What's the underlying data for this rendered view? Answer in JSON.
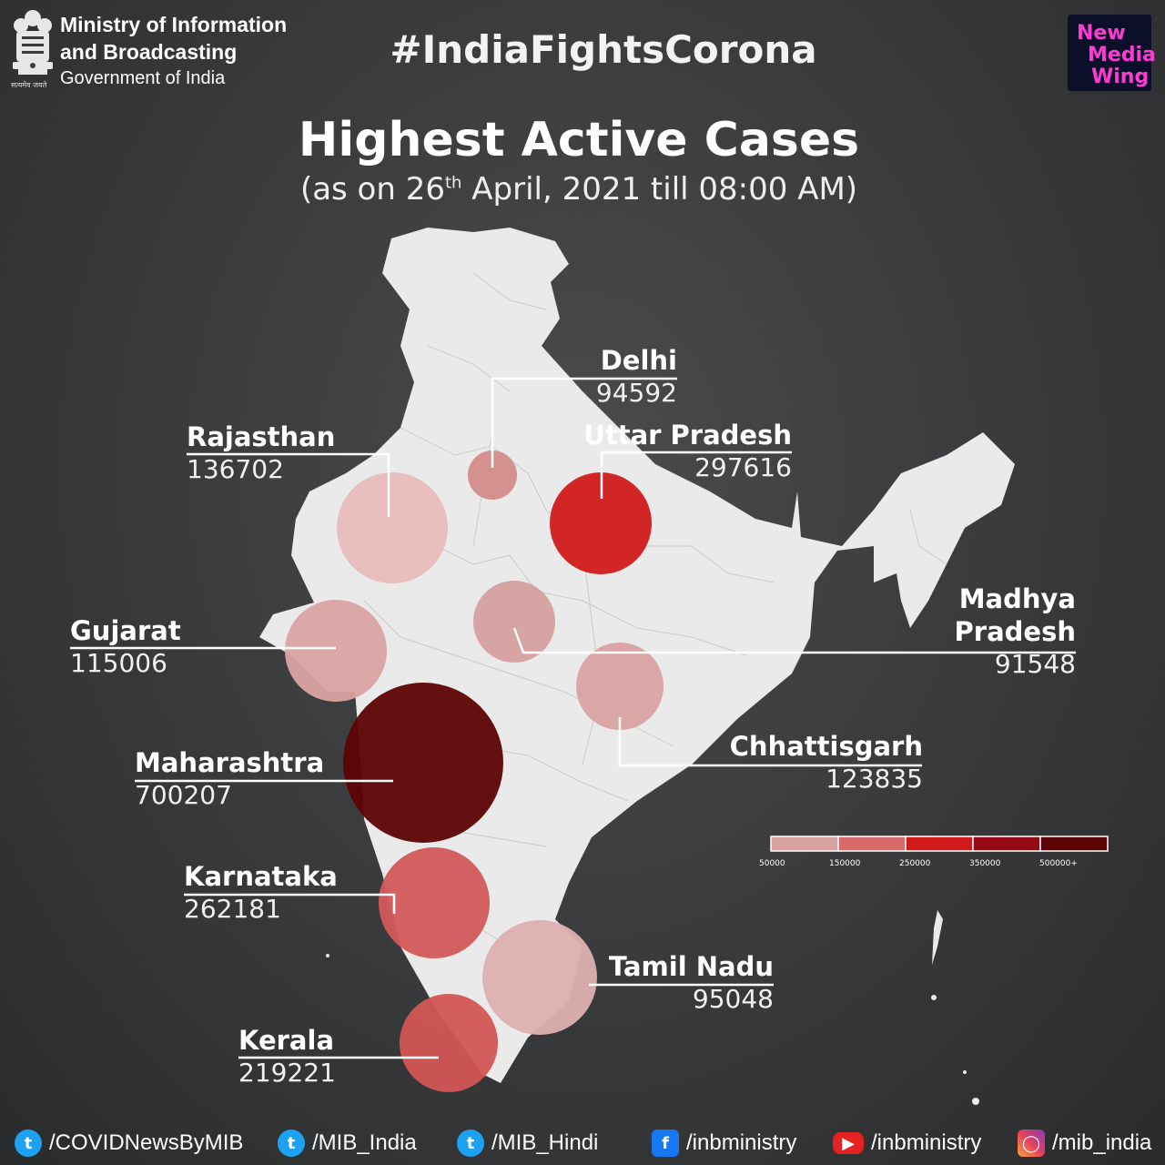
{
  "header": {
    "ministry_line1": "Ministry of Information",
    "ministry_line2": "and Broadcasting",
    "government": "Government of India",
    "emblem_caption": "सत्यमेव जयते",
    "hashtag": "#IndiaFightsCorona",
    "badge": {
      "line1": "New",
      "line2": "Media",
      "line3": "Wing"
    }
  },
  "title": "Highest Active Cases",
  "subtitle": {
    "before": "(as on 26",
    "sup": "th",
    "after": " April, 2021 till 08:00 AM)"
  },
  "states": [
    {
      "id": "delhi",
      "name": "Delhi",
      "value": "94592",
      "cases": 94592,
      "color": "#d48b8b"
    },
    {
      "id": "uttar-pradesh",
      "name": "Uttar Pradesh",
      "value": "297616",
      "cases": 297616,
      "color": "#d11b1b"
    },
    {
      "id": "rajasthan",
      "name": "Rajasthan",
      "value": "136702",
      "cases": 136702,
      "color": "#e8bcbc"
    },
    {
      "id": "gujarat",
      "name": "Gujarat",
      "value": "115006",
      "cases": 115006,
      "color": "#daa3a3"
    },
    {
      "id": "madhya-pradesh",
      "name_line1": "Madhya",
      "name_line2": "Pradesh",
      "value": "91548",
      "cases": 91548,
      "color": "#d6a0a0"
    },
    {
      "id": "chhattisgarh",
      "name": "Chhattisgarh",
      "value": "123835",
      "cases": 123835,
      "color": "#d9a2a2"
    },
    {
      "id": "maharashtra",
      "name": "Maharashtra",
      "value": "700207",
      "cases": 700207,
      "color": "#5d0404"
    },
    {
      "id": "karnataka",
      "name": "Karnataka",
      "value": "262181",
      "cases": 262181,
      "color": "#d35a5a"
    },
    {
      "id": "tamil-nadu",
      "name": "Tamil Nadu",
      "value": "95048",
      "cases": 95048,
      "color": "#ddb0b0"
    },
    {
      "id": "kerala",
      "name": "Kerala",
      "value": "219221",
      "cases": 219221,
      "color": "#d35555"
    }
  ],
  "legend": {
    "colors": [
      "#d9a0a0",
      "#d86a6a",
      "#d11b1b",
      "#960a14",
      "#5d0404"
    ],
    "ticks": [
      "50000",
      "150000",
      "250000",
      "350000",
      "500000+"
    ]
  },
  "footer": [
    {
      "icon": "twitter-icon",
      "text": "/COVIDNewsByMIB"
    },
    {
      "icon": "twitter-icon",
      "text": "/MIB_India"
    },
    {
      "icon": "twitter-icon",
      "text": "/MIB_Hindi"
    },
    {
      "icon": "facebook-icon",
      "text": "/inbministry"
    },
    {
      "icon": "youtube-icon",
      "text": "/inbministry"
    },
    {
      "icon": "instagram-icon",
      "text": "/mib_india"
    }
  ]
}
